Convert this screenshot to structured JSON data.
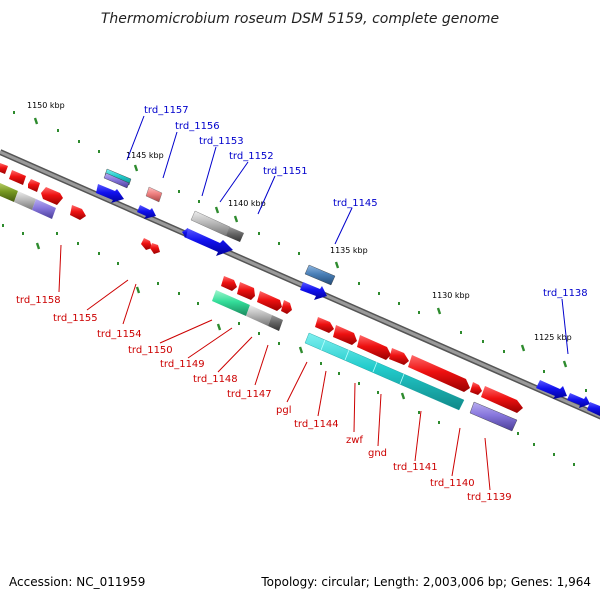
{
  "title": "Thermomicrobium roseum DSM 5159, complete genome",
  "footer": {
    "accession": "Accession: NC_011959",
    "summary": "Topology: circular; Length: 2,003,006 bp; Genes: 1,964"
  },
  "scale_labels": [
    "1150 kbp",
    "1145 kbp",
    "1140 kbp",
    "1135 kbp",
    "1130 kbp",
    "1125 kbp"
  ],
  "labels_above": [
    "trd_1157",
    "trd_1156",
    "trd_1153",
    "trd_1152",
    "trd_1151",
    "trd_1145",
    "trd_1138"
  ],
  "labels_below": [
    "trd_1158",
    "trd_1155",
    "trd_1154",
    "trd_1150",
    "trd_1149",
    "trd_1148",
    "trd_1147",
    "pgl",
    "trd_1144",
    "zwf",
    "gnd",
    "trd_1141",
    "trd_1140",
    "trd_1139"
  ],
  "colors": {
    "backbone": "#7f7f7f",
    "scale_ticks": "#2e8b2e",
    "label_above": "#0000cc",
    "label_below": "#cc0000",
    "gene_red": "#ee1111",
    "gene_blue": "#1111ee",
    "gene_cyan": "#22cccc",
    "gene_purple": "#8877dd",
    "gene_green": "#33dd99",
    "gene_gray": "#bbbbbb",
    "gene_steel": "#4a80b8",
    "gene_olive": "#779922"
  }
}
